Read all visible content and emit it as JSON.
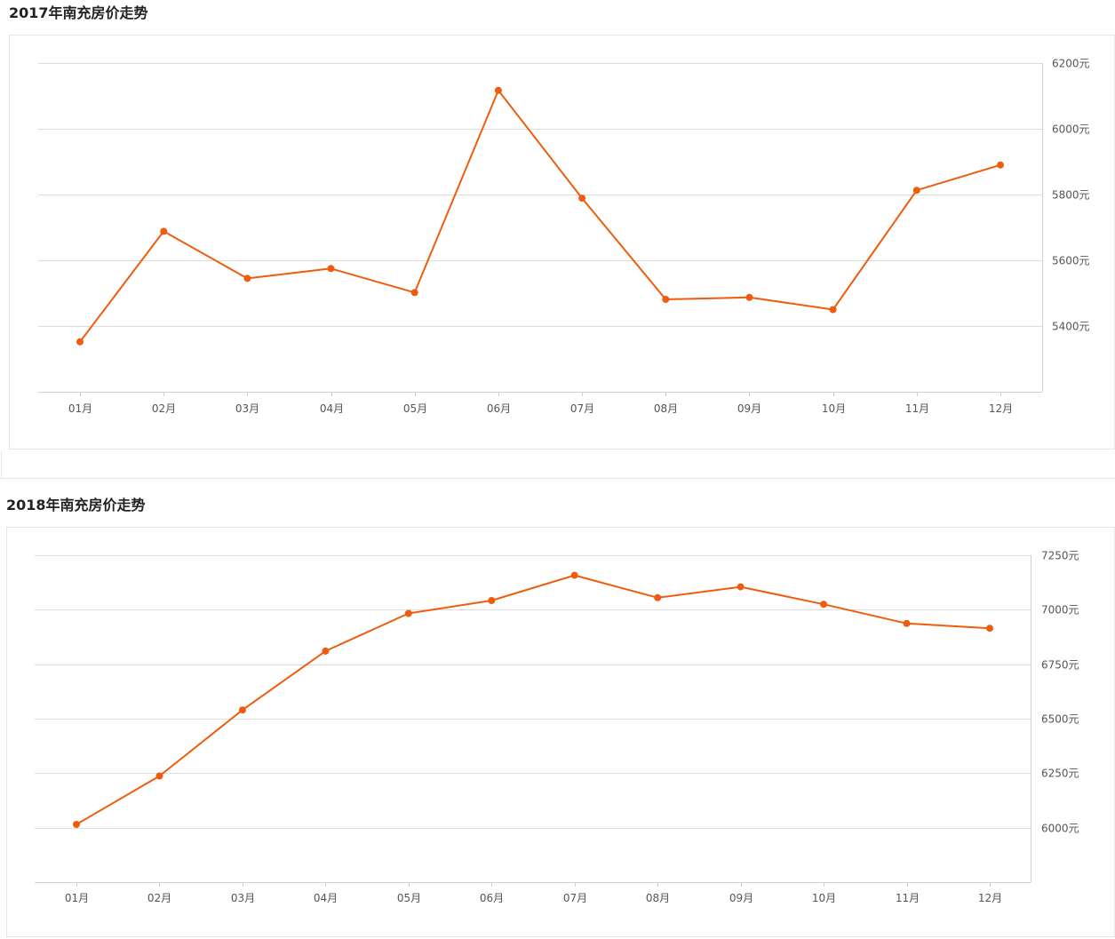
{
  "colors": {
    "series": "#ee5d0e",
    "grid": "#dcdcdc",
    "axis": "#cfcfcf"
  },
  "sections": [
    {
      "title": "2017年南充房价走势"
    },
    {
      "title": "2018年南充房价走势"
    }
  ],
  "chart_data": [
    {
      "type": "line",
      "title": "2017年南充房价走势",
      "categories": [
        "01月",
        "02月",
        "03月",
        "04月",
        "05月",
        "06月",
        "07月",
        "08月",
        "09月",
        "10月",
        "11月",
        "12月"
      ],
      "series": [
        {
          "values": [
            5352,
            5688,
            5545,
            5575,
            5502,
            6117,
            5789,
            5481,
            5487,
            5450,
            5813,
            5890
          ]
        }
      ],
      "y_ticks": [
        5400,
        5600,
        5800,
        6000,
        6200
      ],
      "y_tick_labels": [
        "5400元",
        "5600元",
        "5800元",
        "6000元",
        "6200元"
      ],
      "ylim": [
        5200,
        6200
      ],
      "y_axis_position": "right",
      "grid": true,
      "legend": "none"
    },
    {
      "type": "line",
      "title": "2018年南充房价走势",
      "categories": [
        "01月",
        "02月",
        "03月",
        "04月",
        "05月",
        "06月",
        "07月",
        "08月",
        "09月",
        "10月",
        "11月",
        "12月"
      ],
      "series": [
        {
          "values": [
            6015,
            6237,
            6540,
            6810,
            6983,
            7042,
            7158,
            7055,
            7105,
            7025,
            6937,
            6915
          ]
        }
      ],
      "y_ticks": [
        6000,
        6250,
        6500,
        6750,
        7000,
        7250
      ],
      "y_tick_labels": [
        "6000元",
        "6250元",
        "6500元",
        "6750元",
        "7000元",
        "7250元"
      ],
      "ylim": [
        5750,
        7250
      ],
      "y_axis_position": "right",
      "grid": true,
      "legend": "none"
    }
  ]
}
